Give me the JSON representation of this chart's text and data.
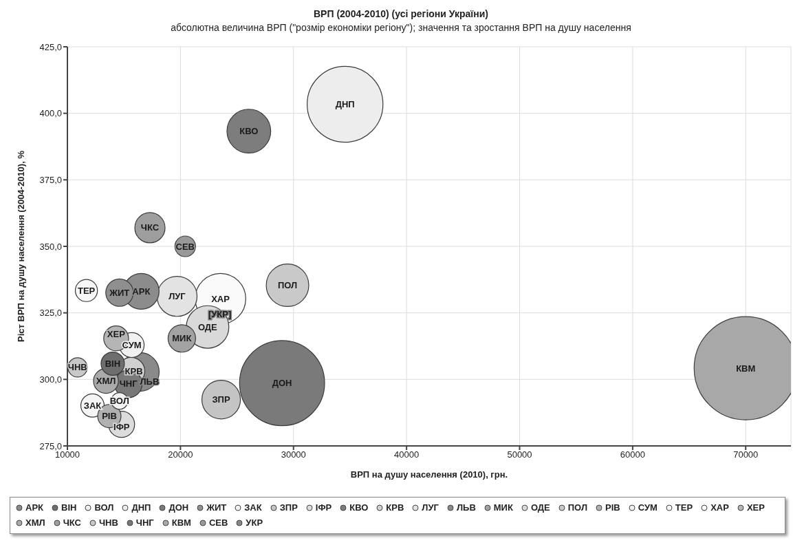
{
  "chart_data": {
    "type": "bubble",
    "title": "ВРП (2004-2010) (усі регіони України)",
    "subtitle": "абсолютна величина ВРП (\"розмір економіки регіону\"); значення та зростання ВРП на душу населення",
    "xlabel": "ВРП на душу населення (2010), грн.",
    "ylabel": "Ріст ВРП на душу населення (2004-2010), %",
    "xlim": [
      10000,
      74000
    ],
    "xticks": [
      10000,
      20000,
      30000,
      40000,
      50000,
      60000,
      70000
    ],
    "ylim": [
      275,
      425
    ],
    "yticks": [
      {
        "value": 275,
        "label": "275,0"
      },
      {
        "value": 300,
        "label": "300,0"
      },
      {
        "value": 325,
        "label": "325,0"
      },
      {
        "value": 350,
        "label": "350,0"
      },
      {
        "value": 375,
        "label": "375,0"
      },
      {
        "value": 400,
        "label": "400,0"
      },
      {
        "value": 425,
        "label": "425,0"
      }
    ],
    "grid": true,
    "legend": "bottom",
    "series": [
      {
        "name": "АРК",
        "color": "#8c8c8c",
        "x": [
          16530
        ],
        "values": [
          333.1
        ],
        "sizes": [
          0.12
        ],
        "value_labels": [
          "АРК"
        ]
      },
      {
        "name": "ВІН",
        "color": "#6e6e6e",
        "x": [
          14010
        ],
        "values": [
          305.9
        ],
        "sizes": [
          0.051
        ],
        "value_labels": [
          "ВІН"
        ]
      },
      {
        "name": "ВОЛ",
        "color": "#f2f2f2",
        "x": [
          14610
        ],
        "values": [
          291.9
        ],
        "sizes": [
          0.026
        ],
        "value_labels": [
          "ВОЛ"
        ]
      },
      {
        "name": "ДНП",
        "color": "#ededed",
        "x": [
          34560
        ],
        "values": [
          403.4
        ],
        "sizes": [
          0.54
        ],
        "value_labels": [
          "ДНП"
        ]
      },
      {
        "name": "ДОН",
        "color": "#7a7a7a",
        "x": [
          28990
        ],
        "values": [
          298.6
        ],
        "sizes": [
          0.68
        ],
        "value_labels": [
          "ДОН"
        ]
      },
      {
        "name": "ЖИТ",
        "color": "#8f8f8f",
        "x": [
          14610
        ],
        "values": [
          332.6
        ],
        "sizes": [
          0.071
        ],
        "value_labels": [
          "ЖИТ"
        ]
      },
      {
        "name": "ЗАК",
        "color": "#f5f5f5",
        "x": [
          12220
        ],
        "values": [
          290.2
        ],
        "sizes": [
          0.051
        ],
        "value_labels": [
          "ЗАК"
        ]
      },
      {
        "name": "ЗПР",
        "color": "#c4c4c4",
        "x": [
          23600
        ],
        "values": [
          292.4
        ],
        "sizes": [
          0.14
        ],
        "value_labels": [
          "ЗПР"
        ]
      },
      {
        "name": "ІФР",
        "color": "#dcdcdc",
        "x": [
          14790
        ],
        "values": [
          283.1
        ],
        "sizes": [
          0.064
        ],
        "value_labels": [
          "ІФР"
        ]
      },
      {
        "name": "КВО",
        "color": "#7d7d7d",
        "x": [
          26050
        ],
        "values": [
          393.3
        ],
        "sizes": [
          0.18
        ],
        "value_labels": [
          "КВО"
        ]
      },
      {
        "name": "КРВ",
        "color": "#d0d0d0",
        "x": [
          15630
        ],
        "values": [
          303.1
        ],
        "sizes": [
          0.071
        ],
        "value_labels": [
          "КРВ"
        ]
      },
      {
        "name": "ЛУГ",
        "color": "#e3e3e3",
        "x": [
          19700
        ],
        "values": [
          331.2
        ],
        "sizes": [
          0.15
        ],
        "value_labels": [
          "ЛУГ"
        ]
      },
      {
        "name": "ЛЬВ",
        "color": "#8a8a8a",
        "x": [
          16410
        ],
        "values": [
          302.8
        ],
        "sizes": [
          0.14
        ],
        "value_labels": [
          "ЛЬВ"
        ]
      },
      {
        "name": "МИК",
        "color": "#a3a3a3",
        "x": [
          20120
        ],
        "values": [
          315.4
        ],
        "sizes": [
          0.071
        ],
        "value_labels": [
          "МИК"
        ]
      },
      {
        "name": "ОДЕ",
        "color": "#d9d9d9",
        "x": [
          22400
        ],
        "values": [
          319.7
        ],
        "sizes": [
          0.17
        ],
        "value_labels": [
          "ОДЕ"
        ]
      },
      {
        "name": "ПОЛ",
        "color": "#c9c9c9",
        "x": [
          29470
        ],
        "values": [
          335.4
        ],
        "sizes": [
          0.17
        ],
        "value_labels": [
          "ПОЛ"
        ]
      },
      {
        "name": "РІВ",
        "color": "#b0b0b0",
        "x": [
          13710
        ],
        "values": [
          286.2
        ],
        "sizes": [
          0.051
        ],
        "value_labels": [
          "РІВ"
        ]
      },
      {
        "name": "СУМ",
        "color": "#f0f0f0",
        "x": [
          15690
        ],
        "values": [
          312.9
        ],
        "sizes": [
          0.058
        ],
        "value_labels": [
          "СУМ"
        ]
      },
      {
        "name": "ТЕР",
        "color": "#f7f7f7",
        "x": [
          11680
        ],
        "values": [
          333.4
        ],
        "sizes": [
          0.046
        ],
        "value_labels": [
          "ТЕР"
        ]
      },
      {
        "name": "ХАР",
        "color": "#fafafa",
        "x": [
          23540
        ],
        "values": [
          330.3
        ],
        "sizes": [
          0.24
        ],
        "value_labels": [
          "ХАР"
        ]
      },
      {
        "name": "ХЕР",
        "color": "#b5b5b5",
        "x": [
          14310
        ],
        "values": [
          315.4
        ],
        "sizes": [
          0.058
        ],
        "value_labels": [
          "ХЕР"
        ]
      },
      {
        "name": "ХМЛ",
        "color": "#aaaaaa",
        "x": [
          13410
        ],
        "values": [
          299.4
        ],
        "sizes": [
          0.058
        ],
        "value_labels": [
          "ХМЛ"
        ]
      },
      {
        "name": "ЧКС",
        "color": "#9e9e9e",
        "x": [
          17300
        ],
        "values": [
          357.0
        ],
        "sizes": [
          0.086
        ],
        "value_labels": [
          "ЧКС"
        ]
      },
      {
        "name": "ЧНВ",
        "color": "#c8c8c8",
        "x": [
          10900
        ],
        "values": [
          304.5
        ],
        "sizes": [
          0.035
        ],
        "value_labels": [
          "ЧНВ"
        ]
      },
      {
        "name": "ЧНГ",
        "color": "#787878",
        "x": [
          15390
        ],
        "values": [
          298.3
        ],
        "sizes": [
          0.071
        ],
        "value_labels": [
          "ЧНГ"
        ]
      },
      {
        "name": "КВМ",
        "color": "#a8a8a8",
        "x": [
          70000
        ],
        "values": [
          304.2
        ],
        "sizes": [
          1
        ],
        "value_labels": [
          "КВМ"
        ]
      },
      {
        "name": "СЕВ",
        "color": "#999999",
        "x": [
          20420
        ],
        "values": [
          350.0
        ],
        "sizes": [
          0.04
        ],
        "value_labels": [
          "СЕВ"
        ]
      },
      {
        "name": "УКР",
        "color": "#888888",
        "x": [
          23480
        ],
        "values": [
          324.4
        ],
        "sizes": [
          0.004
        ],
        "value_labels": [
          "[УКР]"
        ]
      }
    ]
  }
}
